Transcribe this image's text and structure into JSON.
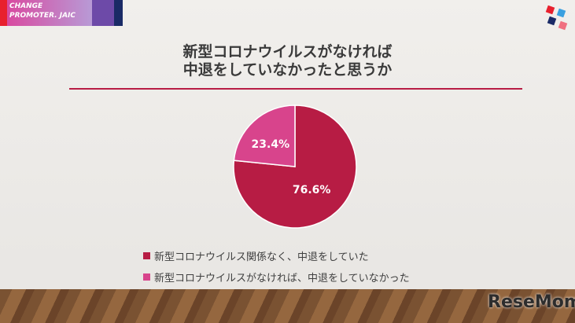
{
  "logo": {
    "text": "CHANGE PROMOTER. JAIC"
  },
  "watermark": "ReseMom",
  "chart_data": {
    "type": "pie",
    "title": "新型コロナウイルスがなければ\n中退をしていなかったと思うか",
    "slices": [
      {
        "label": "新型コロナウイルス関係なく、中退をしていた",
        "value": 76.6,
        "display": "76.6%",
        "color": "#B71C44"
      },
      {
        "label": "新型コロナウイルスがなければ、中退をしていなかった",
        "value": 23.4,
        "display": "23.4%",
        "color": "#D8448C"
      }
    ],
    "legend_position": "bottom"
  }
}
